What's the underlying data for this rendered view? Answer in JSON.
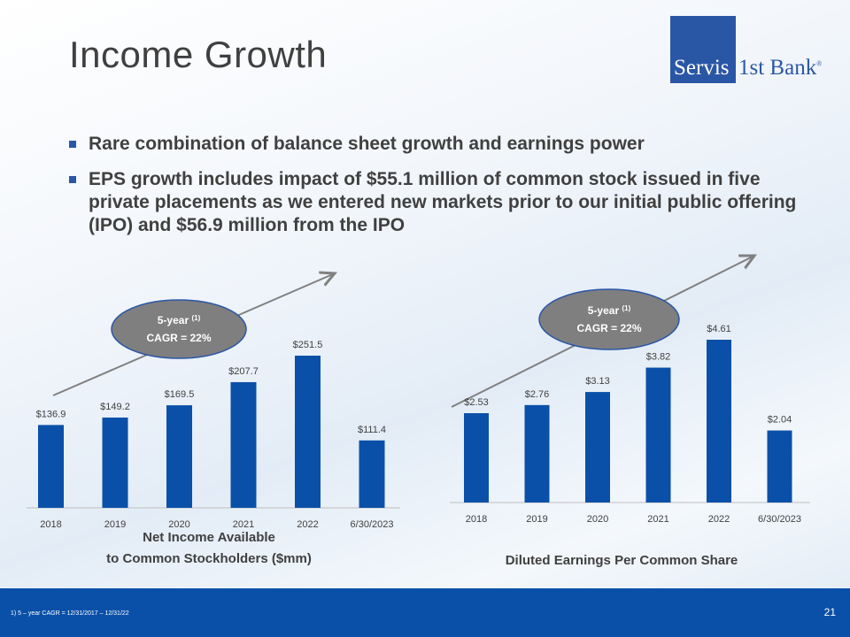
{
  "title": "Income Growth",
  "logo": {
    "part1": "Servis",
    "part2": "1st Bank",
    "mark": "®"
  },
  "bullets": [
    "Rare combination of balance sheet growth and earnings power",
    "EPS growth includes impact of $55.1 million of common stock issued in five private placements as we entered new markets prior to our initial public offering (IPO) and $56.9 million from the IPO"
  ],
  "chart_data": [
    {
      "type": "bar",
      "categories": [
        "2018",
        "2019",
        "2020",
        "2021",
        "2022",
        "6/30/2023"
      ],
      "values": [
        136.9,
        149.2,
        169.5,
        207.7,
        251.5,
        111.4
      ],
      "data_labels": [
        "$136.9",
        "$149.2",
        "$169.5",
        "$207.7",
        "$251.5",
        "$111.4"
      ],
      "title_lines": [
        "Net Income Available",
        "to Common Stockholders ($mm)"
      ],
      "callout": {
        "line1": "5-year",
        "sup": "(1)",
        "line2": "CAGR = 22%"
      },
      "ylim": [
        0,
        300
      ],
      "bar_color": "#0a50a8"
    },
    {
      "type": "bar",
      "categories": [
        "2018",
        "2019",
        "2020",
        "2021",
        "2022",
        "6/30/2023"
      ],
      "values": [
        2.53,
        2.76,
        3.13,
        3.82,
        4.61,
        2.04
      ],
      "data_labels": [
        "$2.53",
        "$2.76",
        "$3.13",
        "$3.82",
        "$4.61",
        "$2.04"
      ],
      "title_lines": [
        "Diluted Earnings Per Common Share"
      ],
      "callout": {
        "line1": "5-year",
        "sup": "(1)",
        "line2": "CAGR = 22%"
      },
      "ylim": [
        0,
        5.5
      ],
      "bar_color": "#0a50a8"
    }
  ],
  "footer": {
    "footnote": "1)      5 – year CAGR = 12/31/2017 – 12/31/22",
    "page": "21"
  }
}
